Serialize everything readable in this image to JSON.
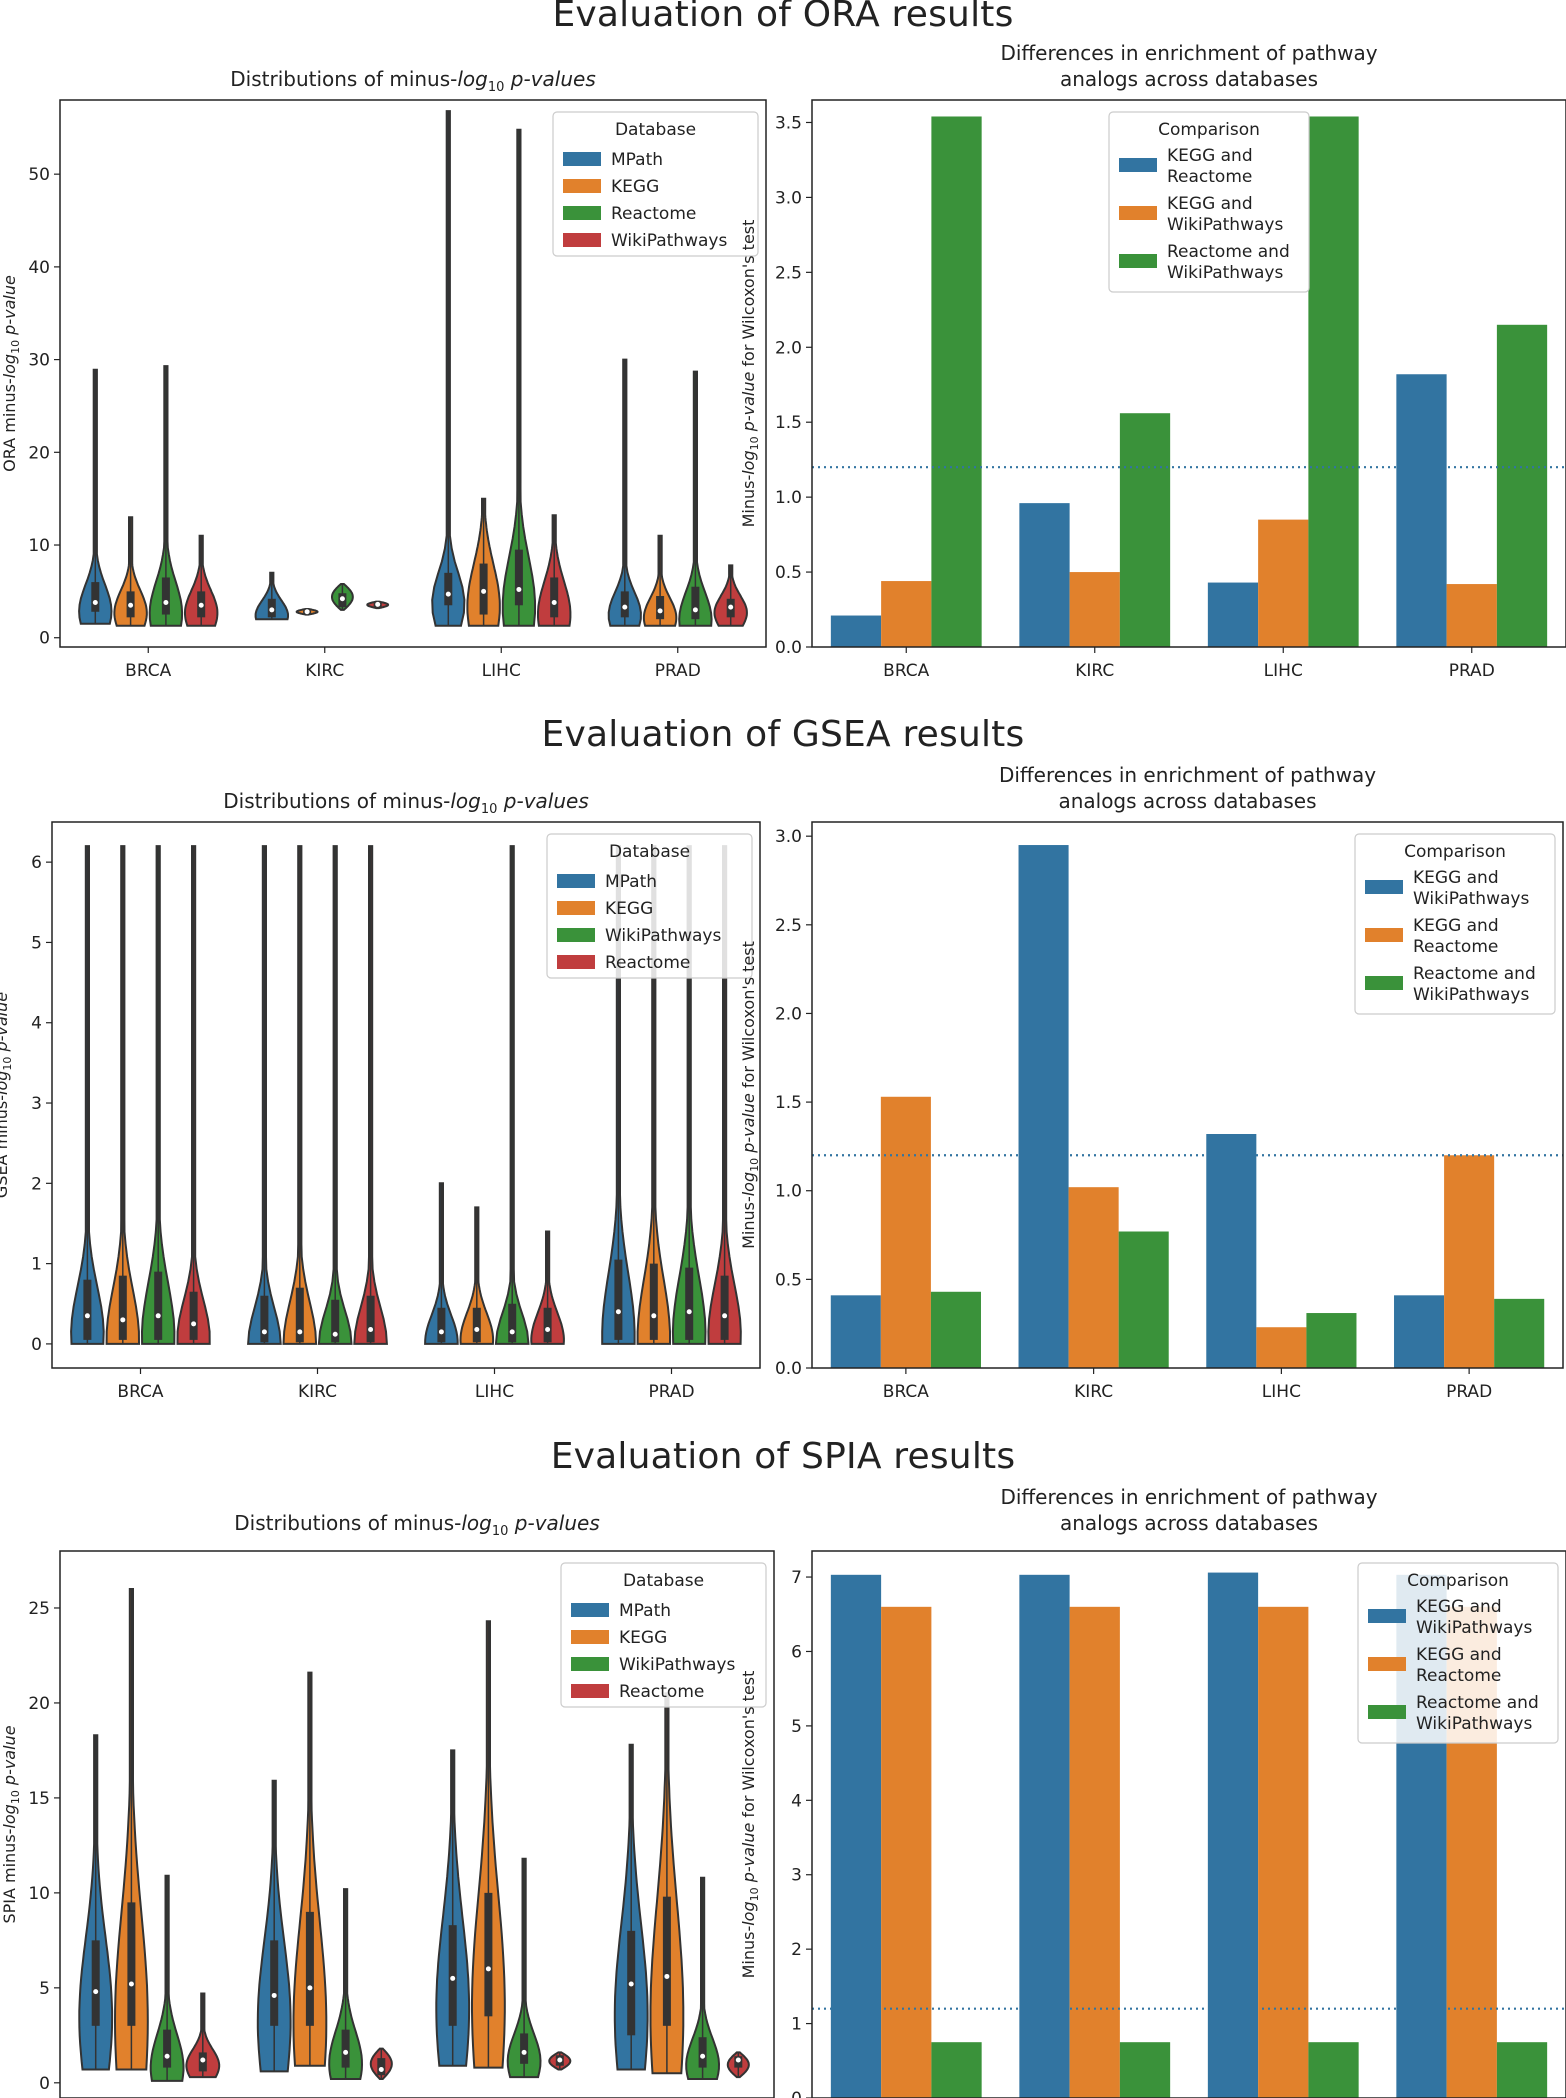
{
  "titles": {
    "ora": "Evaluation of ORA results",
    "gsea": "Evaluation of GSEA results",
    "spia": "Evaluation of SPIA results"
  },
  "chart_data": [
    {
      "type": "violin",
      "id": "ora-violin",
      "title_plain": "Distributions of minus-",
      "title_italic": "log",
      "title_sub": "10",
      "title_italic2": "p-values",
      "ylabel_plain": "ORA minus-",
      "ylabel_italic": "log",
      "ylabel_sub": "10",
      "ylabel_italic2": "p-value",
      "categories": [
        "BRCA",
        "KIRC",
        "LIHC",
        "PRAD"
      ],
      "ylim": [
        -1,
        58
      ],
      "yticks": [
        0,
        10,
        20,
        30,
        40,
        50
      ],
      "legend_title": "Database",
      "legend_position": "top-right",
      "series": [
        {
          "name": "MPath",
          "color": "#3274a1",
          "violins": [
            [
              1.5,
              28.9,
              2.8,
              3.8,
              6.0
            ],
            [
              2.0,
              7.0,
              2.2,
              3.0,
              4.2
            ],
            [
              1.3,
              56.8,
              3.5,
              4.7,
              7.0
            ],
            [
              1.3,
              30.0,
              2.2,
              3.3,
              5.0
            ]
          ]
        },
        {
          "name": "KEGG",
          "color": "#e1812c",
          "violins": [
            [
              1.3,
              13.0,
              2.2,
              3.5,
              5.0
            ],
            [
              2.5,
              3.1,
              2.6,
              2.8,
              2.95
            ],
            [
              1.3,
              15.0,
              2.5,
              5.0,
              8.0
            ],
            [
              1.3,
              11.0,
              2.0,
              2.9,
              4.5
            ]
          ]
        },
        {
          "name": "Reactome",
          "color": "#3a923a",
          "violins": [
            [
              1.3,
              29.3,
              2.5,
              3.8,
              6.5
            ],
            [
              3.0,
              5.8,
              3.3,
              4.2,
              4.8
            ],
            [
              1.3,
              54.8,
              3.5,
              5.2,
              9.5
            ],
            [
              1.3,
              28.7,
              2.0,
              3.0,
              5.5
            ]
          ]
        },
        {
          "name": "WikiPathways",
          "color": "#c03d3e",
          "violins": [
            [
              1.3,
              11.0,
              2.2,
              3.5,
              5.0
            ],
            [
              3.2,
              3.9,
              3.3,
              3.6,
              3.75
            ],
            [
              1.3,
              13.2,
              2.2,
              3.8,
              6.5
            ],
            [
              1.3,
              7.8,
              2.2,
              3.3,
              4.2
            ]
          ]
        }
      ]
    },
    {
      "type": "bar",
      "id": "ora-bar",
      "title_lines": [
        "Differences in enrichment of pathway",
        "analogs across databases"
      ],
      "ylabel_italic_pre": "Minus-",
      "ylabel_italic": "log",
      "ylabel_sub": "10",
      "ylabel_italic2": "p-value",
      "ylabel_post": "for Wilcoxon's test",
      "categories": [
        "BRCA",
        "KIRC",
        "LIHC",
        "PRAD"
      ],
      "ylim": [
        0,
        3.65
      ],
      "yticks": [
        0.0,
        0.5,
        1.0,
        1.5,
        2.0,
        2.5,
        3.0,
        3.5
      ],
      "tick_format": 1,
      "threshold": 1.2,
      "legend_title": "Comparison",
      "legend_position": "top-center",
      "series": [
        {
          "name_lines": [
            "KEGG and",
            "Reactome"
          ],
          "color": "#3274a1",
          "values": [
            0.21,
            0.96,
            0.43,
            1.82
          ]
        },
        {
          "name_lines": [
            "KEGG and",
            "WikiPathways"
          ],
          "color": "#e1812c",
          "values": [
            0.44,
            0.5,
            0.85,
            0.42
          ]
        },
        {
          "name_lines": [
            "Reactome and",
            "WikiPathways"
          ],
          "color": "#3a923a",
          "values": [
            3.54,
            1.56,
            3.54,
            2.15
          ]
        }
      ]
    },
    {
      "type": "violin",
      "id": "gsea-violin",
      "title_plain": "Distributions of minus-",
      "title_italic": "log",
      "title_sub": "10",
      "title_italic2": "p-values",
      "ylabel_plain": "GSEA minus-",
      "ylabel_italic": "log",
      "ylabel_sub": "10",
      "ylabel_italic2": "p-value",
      "categories": [
        "BRCA",
        "KIRC",
        "LIHC",
        "PRAD"
      ],
      "ylim": [
        -0.3,
        6.5
      ],
      "yticks": [
        0,
        1,
        2,
        3,
        4,
        5,
        6
      ],
      "legend_title": "Database",
      "legend_position": "top-right",
      "series": [
        {
          "name": "MPath",
          "color": "#3274a1",
          "violins": [
            [
              0,
              6.2,
              0.05,
              0.35,
              0.8
            ],
            [
              0,
              6.2,
              0.02,
              0.15,
              0.6
            ],
            [
              0,
              2.0,
              0.02,
              0.15,
              0.45
            ],
            [
              0,
              6.2,
              0.05,
              0.4,
              1.05
            ]
          ]
        },
        {
          "name": "KEGG",
          "color": "#e1812c",
          "violins": [
            [
              0,
              6.2,
              0.05,
              0.3,
              0.85
            ],
            [
              0,
              6.2,
              0.02,
              0.15,
              0.7
            ],
            [
              0,
              1.7,
              0.02,
              0.18,
              0.45
            ],
            [
              0,
              6.2,
              0.05,
              0.35,
              1.0
            ]
          ]
        },
        {
          "name": "WikiPathways",
          "color": "#3a923a",
          "violins": [
            [
              0,
              6.2,
              0.05,
              0.35,
              0.9
            ],
            [
              0,
              6.2,
              0.02,
              0.12,
              0.55
            ],
            [
              0,
              6.2,
              0.02,
              0.15,
              0.5
            ],
            [
              0,
              6.2,
              0.05,
              0.4,
              0.95
            ]
          ]
        },
        {
          "name": "Reactome",
          "color": "#c03d3e",
          "violins": [
            [
              0,
              6.2,
              0.05,
              0.25,
              0.65
            ],
            [
              0,
              6.2,
              0.02,
              0.18,
              0.6
            ],
            [
              0,
              1.4,
              0.02,
              0.18,
              0.45
            ],
            [
              0,
              6.2,
              0.05,
              0.35,
              0.85
            ]
          ]
        }
      ]
    },
    {
      "type": "bar",
      "id": "gsea-bar",
      "title_lines": [
        "Differences in enrichment of pathway",
        "analogs across databases"
      ],
      "ylabel_italic_pre": "Minus-",
      "ylabel_italic": "log",
      "ylabel_sub": "10",
      "ylabel_italic2": "p-value",
      "ylabel_post": "for Wilcoxon's test",
      "categories": [
        "BRCA",
        "KIRC",
        "LIHC",
        "PRAD"
      ],
      "ylim": [
        0,
        3.08
      ],
      "yticks": [
        0.0,
        0.5,
        1.0,
        1.5,
        2.0,
        2.5,
        3.0
      ],
      "tick_format": 1,
      "threshold": 1.2,
      "legend_title": "Comparison",
      "legend_position": "top-right",
      "series": [
        {
          "name_lines": [
            "KEGG and",
            "WikiPathways"
          ],
          "color": "#3274a1",
          "values": [
            0.41,
            2.95,
            1.32,
            0.41
          ]
        },
        {
          "name_lines": [
            "KEGG and",
            "Reactome"
          ],
          "color": "#e1812c",
          "values": [
            1.53,
            1.02,
            0.23,
            1.2
          ]
        },
        {
          "name_lines": [
            "Reactome and",
            "WikiPathways"
          ],
          "color": "#3a923a",
          "values": [
            0.43,
            0.77,
            0.31,
            0.39
          ]
        }
      ]
    },
    {
      "type": "violin",
      "id": "spia-violin",
      "title_plain": "Distributions of minus-",
      "title_italic": "log",
      "title_sub": "10",
      "title_italic2": "p-values",
      "ylabel_plain": "SPIA minus-",
      "ylabel_italic": "log",
      "ylabel_sub": "10",
      "ylabel_italic2": "p-value",
      "categories": [
        "",
        "",
        "",
        ""
      ],
      "ylim": [
        -0.8,
        28
      ],
      "yticks": [
        0,
        5,
        10,
        15,
        20,
        25
      ],
      "legend_title": "Database",
      "legend_position": "top-right",
      "series": [
        {
          "name": "MPath",
          "color": "#3274a1",
          "violins": [
            [
              0.7,
              18.3,
              3.0,
              4.8,
              7.5
            ],
            [
              0.6,
              15.9,
              3.0,
              4.6,
              7.5
            ],
            [
              0.9,
              17.5,
              3.0,
              5.5,
              8.3
            ],
            [
              0.7,
              17.8,
              2.5,
              5.2,
              8.0
            ]
          ]
        },
        {
          "name": "KEGG",
          "color": "#e1812c",
          "violins": [
            [
              0.7,
              26.0,
              3.0,
              5.2,
              9.5
            ],
            [
              0.9,
              21.6,
              3.0,
              5.0,
              9.0
            ],
            [
              0.8,
              24.3,
              3.5,
              6.0,
              10.0
            ],
            [
              0.5,
              20.5,
              3.0,
              5.6,
              9.8
            ]
          ]
        },
        {
          "name": "WikiPathways",
          "color": "#3a923a",
          "violins": [
            [
              0.1,
              10.9,
              0.8,
              1.4,
              2.8
            ],
            [
              0.2,
              10.2,
              0.8,
              1.6,
              2.8
            ],
            [
              0.3,
              11.8,
              1.0,
              1.6,
              2.6
            ],
            [
              0.2,
              10.8,
              0.8,
              1.4,
              2.4
            ]
          ]
        },
        {
          "name": "Reactome",
          "color": "#c03d3e",
          "violins": [
            [
              0.3,
              4.7,
              0.6,
              1.2,
              1.6
            ],
            [
              0.2,
              1.8,
              0.4,
              0.7,
              1.3
            ],
            [
              0.7,
              1.6,
              0.9,
              1.2,
              1.45
            ],
            [
              0.3,
              1.6,
              0.8,
              1.2,
              1.4
            ]
          ]
        }
      ]
    },
    {
      "type": "bar",
      "id": "spia-bar",
      "title_lines": [
        "Differences in enrichment of pathway",
        "analogs across databases"
      ],
      "ylabel_italic_pre": "Minus-",
      "ylabel_italic": "log",
      "ylabel_sub": "10",
      "ylabel_italic2": "p-value",
      "ylabel_post": "for Wilcoxon's test",
      "categories": [
        "",
        "",
        "",
        ""
      ],
      "ylim": [
        0,
        7.35
      ],
      "yticks": [
        0,
        1,
        2,
        3,
        4,
        5,
        6,
        7
      ],
      "tick_format": 0,
      "threshold": 1.2,
      "legend_title": "Comparison",
      "legend_position": "top-right",
      "series": [
        {
          "name_lines": [
            "KEGG and",
            "WikiPathways"
          ],
          "color": "#3274a1",
          "values": [
            7.03,
            7.03,
            7.06,
            7.03
          ]
        },
        {
          "name_lines": [
            "KEGG and",
            "Reactome"
          ],
          "color": "#e1812c",
          "values": [
            6.6,
            6.6,
            6.6,
            6.6
          ]
        },
        {
          "name_lines": [
            "Reactome and",
            "WikiPathways"
          ],
          "color": "#3a923a",
          "values": [
            0.75,
            0.75,
            0.75,
            0.75
          ]
        }
      ]
    }
  ]
}
